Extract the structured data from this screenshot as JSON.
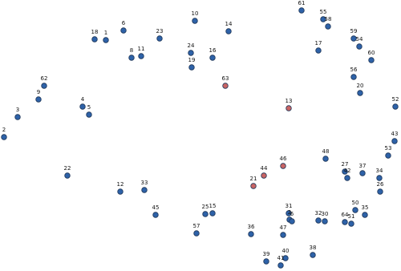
{
  "nodes": [
    {
      "label": "1",
      "color": "#2e62a8"
    },
    {
      "label": "2",
      "color": "#2e62a8"
    },
    {
      "label": "3",
      "color": "#2e62a8"
    },
    {
      "label": "4",
      "color": "#2e62a8"
    },
    {
      "label": "5",
      "color": "#2e62a8"
    },
    {
      "label": "6",
      "color": "#2e62a8"
    },
    {
      "label": "8",
      "color": "#2e62a8"
    },
    {
      "label": "9",
      "color": "#2e62a8"
    },
    {
      "label": "10",
      "color": "#2e62a8"
    },
    {
      "label": "11",
      "color": "#2e62a8"
    },
    {
      "label": "12",
      "color": "#2e62a8"
    },
    {
      "label": "13",
      "color": "#c96464"
    },
    {
      "label": "14",
      "color": "#2e62a8"
    },
    {
      "label": "15",
      "color": "#2e62a8"
    },
    {
      "label": "16",
      "color": "#2e62a8"
    },
    {
      "label": "17",
      "color": "#2e62a8"
    },
    {
      "label": "18",
      "color": "#2e62a8"
    },
    {
      "label": "19",
      "color": "#2e62a8"
    },
    {
      "label": "20",
      "color": "#2e62a8"
    },
    {
      "label": "21",
      "color": "#c96464"
    },
    {
      "label": "22",
      "color": "#2e62a8"
    },
    {
      "label": "23",
      "color": "#2e62a8"
    },
    {
      "label": "24",
      "color": "#2e62a8"
    },
    {
      "label": "25",
      "color": "#2e62a8"
    },
    {
      "label": "26",
      "color": "#2e62a8"
    },
    {
      "label": "27",
      "color": "#2e62a8"
    },
    {
      "label": "30",
      "color": "#2e62a8"
    },
    {
      "label": "31",
      "color": "#2e62a8"
    },
    {
      "label": "32",
      "color": "#2e62a8"
    },
    {
      "label": "33",
      "color": "#2e62a8"
    },
    {
      "label": "34",
      "color": "#2e62a8"
    },
    {
      "label": "35",
      "color": "#2e62a8"
    },
    {
      "label": "36",
      "color": "#2e62a8"
    },
    {
      "label": "37",
      "color": "#2e62a8"
    },
    {
      "label": "38",
      "color": "#2e62a8"
    },
    {
      "label": "39",
      "color": "#2e62a8"
    },
    {
      "label": "40",
      "color": "#2e62a8"
    },
    {
      "label": "41",
      "color": "#2e62a8"
    },
    {
      "label": "42",
      "color": "#2e62a8"
    },
    {
      "label": "43",
      "color": "#2e62a8"
    },
    {
      "label": "44",
      "color": "#c96464"
    },
    {
      "label": "45",
      "color": "#2e62a8"
    },
    {
      "label": "46",
      "color": "#c96464"
    },
    {
      "label": "47",
      "color": "#2e62a8"
    },
    {
      "label": "48",
      "color": "#2e62a8"
    },
    {
      "label": "50",
      "color": "#2e62a8"
    },
    {
      "label": "51",
      "color": "#2e62a8"
    },
    {
      "label": "52",
      "color": "#2e62a8"
    },
    {
      "label": "53",
      "color": "#2e62a8"
    },
    {
      "label": "54",
      "color": "#2e62a8"
    },
    {
      "label": "55",
      "color": "#2e62a8"
    },
    {
      "label": "56",
      "color": "#2e62a8"
    },
    {
      "label": "57",
      "color": "#2e62a8"
    },
    {
      "label": "58",
      "color": "#2e62a8"
    },
    {
      "label": "59",
      "color": "#2e62a8"
    },
    {
      "label": "60",
      "color": "#2e62a8"
    },
    {
      "label": "61",
      "color": "#2e62a8"
    },
    {
      "label": "62",
      "color": "#2e62a8"
    },
    {
      "label": "63",
      "color": "#c96464"
    },
    {
      "label": "64",
      "color": "#2e62a8"
    },
    {
      "label": "2",
      "color": "#2e62a8"
    },
    {
      "label": "6",
      "color": "#2e62a8"
    }
  ]
}
